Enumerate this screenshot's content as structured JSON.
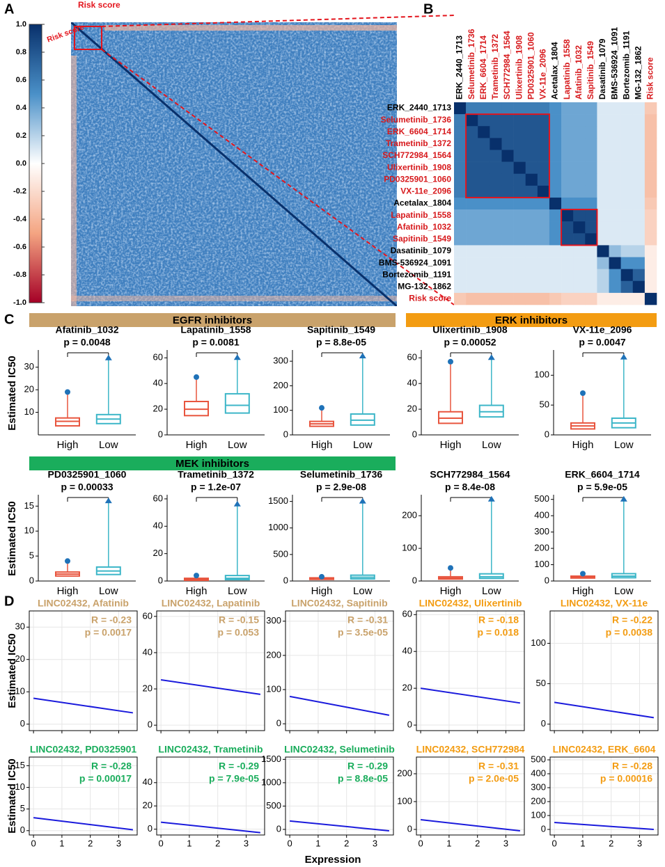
{
  "panel_labels": [
    "A",
    "B",
    "C",
    "D"
  ],
  "panel_a": {
    "annotations": [
      "Risk score",
      "Risk score"
    ],
    "colorbar_ticks": [
      {
        "value": 1,
        "label": "1.0"
      },
      {
        "value": 0.8,
        "label": "0.8"
      },
      {
        "value": 0.6,
        "label": "0.6"
      },
      {
        "value": 0.4,
        "label": "0.4"
      },
      {
        "value": 0.2,
        "label": "0.2"
      },
      {
        "value": 0,
        "label": "0.0"
      },
      {
        "value": -0.2,
        "label": "-0.2"
      },
      {
        "value": -0.4,
        "label": "-0.4"
      },
      {
        "value": -0.6,
        "label": "-0.6"
      },
      {
        "value": -0.8,
        "label": "-0.8"
      },
      {
        "value": -1,
        "label": "-1.0"
      }
    ]
  },
  "panel_b": {
    "labels": [
      "ERK_2440_1713",
      "Selumetinib_1736",
      "ERK_6604_1714",
      "Trametinib_1372",
      "SCH772984_1564",
      "Ulixertinib_1908",
      "PD0325901_1060",
      "VX-11e_2096",
      "Acetalax_1804",
      "Lapatinib_1558",
      "Afatinib_1032",
      "Sapitinib_1549",
      "Dasatinib_1079",
      "BMS-536924_1091",
      "Bortezomib_1191",
      "MG-132_1862",
      "Risk score"
    ],
    "label_colors": [
      "#000000",
      "#d7191c",
      "#d7191c",
      "#d7191c",
      "#d7191c",
      "#d7191c",
      "#d7191c",
      "#d7191c",
      "#000000",
      "#d7191c",
      "#d7191c",
      "#d7191c",
      "#000000",
      "#000000",
      "#000000",
      "#000000",
      "#d7191c"
    ],
    "boxes": [
      [
        1,
        7
      ],
      [
        9,
        11
      ]
    ],
    "matrix": [
      [
        1,
        0.6,
        0.6,
        0.6,
        0.6,
        0.6,
        0.6,
        0.6,
        0.5,
        0.4,
        0.4,
        0.4,
        0.1,
        0.1,
        0.1,
        0.1,
        -0.3
      ],
      [
        0.6,
        1,
        0.8,
        0.8,
        0.8,
        0.8,
        0.8,
        0.8,
        0.5,
        0.4,
        0.4,
        0.4,
        0.1,
        0.1,
        0.1,
        0.1,
        -0.35
      ],
      [
        0.6,
        0.8,
        1,
        0.8,
        0.8,
        0.8,
        0.8,
        0.8,
        0.5,
        0.4,
        0.4,
        0.4,
        0.1,
        0.1,
        0.1,
        0.1,
        -0.35
      ],
      [
        0.6,
        0.8,
        0.8,
        1,
        0.8,
        0.8,
        0.8,
        0.8,
        0.5,
        0.4,
        0.4,
        0.4,
        0.1,
        0.1,
        0.1,
        0.1,
        -0.35
      ],
      [
        0.6,
        0.8,
        0.8,
        0.8,
        1,
        0.8,
        0.8,
        0.8,
        0.5,
        0.4,
        0.4,
        0.4,
        0.1,
        0.1,
        0.1,
        0.1,
        -0.35
      ],
      [
        0.6,
        0.8,
        0.8,
        0.8,
        0.8,
        1,
        0.8,
        0.8,
        0.5,
        0.4,
        0.4,
        0.4,
        0.1,
        0.1,
        0.1,
        0.1,
        -0.35
      ],
      [
        0.6,
        0.8,
        0.8,
        0.8,
        0.8,
        0.8,
        1,
        0.8,
        0.5,
        0.4,
        0.4,
        0.4,
        0.1,
        0.1,
        0.1,
        0.1,
        -0.35
      ],
      [
        0.6,
        0.8,
        0.8,
        0.8,
        0.8,
        0.8,
        0.8,
        1,
        0.5,
        0.4,
        0.4,
        0.4,
        0.1,
        0.1,
        0.1,
        0.1,
        -0.35
      ],
      [
        0.5,
        0.5,
        0.5,
        0.5,
        0.5,
        0.5,
        0.5,
        0.5,
        1,
        0.5,
        0.5,
        0.5,
        0.1,
        0.1,
        0.1,
        0.1,
        -0.3
      ],
      [
        0.4,
        0.4,
        0.4,
        0.4,
        0.4,
        0.4,
        0.4,
        0.4,
        0.5,
        1,
        0.85,
        0.85,
        0.1,
        0.1,
        0.1,
        0.1,
        -0.25
      ],
      [
        0.4,
        0.4,
        0.4,
        0.4,
        0.4,
        0.4,
        0.4,
        0.4,
        0.5,
        0.85,
        1,
        0.85,
        0.1,
        0.1,
        0.1,
        0.1,
        -0.25
      ],
      [
        0.4,
        0.4,
        0.4,
        0.4,
        0.4,
        0.4,
        0.4,
        0.4,
        0.5,
        0.85,
        0.85,
        1,
        0.1,
        0.1,
        0.1,
        0.1,
        -0.25
      ],
      [
        0.1,
        0.1,
        0.1,
        0.1,
        0.1,
        0.1,
        0.1,
        0.1,
        0.1,
        0.1,
        0.1,
        0.1,
        1,
        0.3,
        0.2,
        0.2,
        -0.1
      ],
      [
        0.1,
        0.1,
        0.1,
        0.1,
        0.1,
        0.1,
        0.1,
        0.1,
        0.1,
        0.1,
        0.1,
        0.1,
        0.3,
        1,
        0.5,
        0.5,
        -0.1
      ],
      [
        0.1,
        0.1,
        0.1,
        0.1,
        0.1,
        0.1,
        0.1,
        0.1,
        0.1,
        0.1,
        0.1,
        0.1,
        0.2,
        0.5,
        1,
        0.75,
        -0.1
      ],
      [
        0.1,
        0.1,
        0.1,
        0.1,
        0.1,
        0.1,
        0.1,
        0.1,
        0.1,
        0.1,
        0.1,
        0.1,
        0.2,
        0.5,
        0.75,
        1,
        -0.1
      ],
      [
        -0.3,
        -0.35,
        -0.35,
        -0.35,
        -0.35,
        -0.35,
        -0.35,
        -0.35,
        -0.3,
        -0.25,
        -0.25,
        -0.25,
        -0.1,
        -0.1,
        -0.1,
        -0.1,
        1
      ]
    ]
  },
  "panel_c": {
    "ylabel": "Estimated IC50",
    "groups": [
      "High",
      "Low"
    ],
    "group_colors": [
      "#e8553e",
      "#3cb6c8"
    ],
    "point_color": "#1f72b8",
    "headers": [
      {
        "text": "EGFR inhibitors",
        "color": "#c9a26b"
      },
      {
        "text": "ERK inhibitors",
        "color": "#f39c12"
      },
      {
        "text": "MEK inhibitors",
        "color": "#1aad5c"
      }
    ],
    "plots": [
      {
        "title": "Afatinib_1032",
        "p": "p = 0.0048",
        "ylim": [
          0,
          37
        ],
        "yticks": [
          10,
          20,
          30
        ],
        "q": [
          [
            4,
            6,
            7.5
          ],
          [
            5,
            7,
            9
          ]
        ],
        "max": [
          19,
          34
        ]
      },
      {
        "title": "Lapatinib_1558",
        "p": "p = 0.0081",
        "ylim": [
          0,
          65
        ],
        "yticks": [
          0,
          20,
          40,
          60
        ],
        "q": [
          [
            15,
            20,
            26
          ],
          [
            17,
            23,
            32
          ]
        ],
        "max": [
          45,
          60
        ]
      },
      {
        "title": "Sapitinib_1549",
        "p": "p = 8.8e-05",
        "ylim": [
          0,
          340
        ],
        "yticks": [
          0,
          100,
          200,
          300
        ],
        "q": [
          [
            35,
            45,
            55
          ],
          [
            40,
            60,
            85
          ]
        ],
        "max": [
          110,
          320
        ]
      },
      {
        "title": "Ulixertinib_1908",
        "p": "p = 0.00052",
        "ylim": [
          0,
          65
        ],
        "yticks": [
          0,
          20,
          40,
          60
        ],
        "q": [
          [
            9,
            13,
            18
          ],
          [
            14,
            18,
            23
          ]
        ],
        "max": [
          57,
          60
        ]
      },
      {
        "title": "VX-11e_2096",
        "p": "p = 0.0047",
        "ylim": [
          0,
          140
        ],
        "yticks": [
          0,
          50,
          100
        ],
        "q": [
          [
            10,
            15,
            20
          ],
          [
            12,
            20,
            28
          ]
        ],
        "max": [
          70,
          130
        ]
      },
      {
        "title": "PD0325901_1060",
        "p": "p = 0.00033",
        "ylim": [
          0,
          17
        ],
        "yticks": [
          0,
          5,
          10,
          15
        ],
        "q": [
          [
            1,
            1.4,
            1.8
          ],
          [
            1.3,
            2,
            2.8
          ]
        ],
        "max": [
          4,
          16
        ]
      },
      {
        "title": "Trametinib_1372",
        "p": "p = 1.2e-07",
        "ylim": [
          0,
          62
        ],
        "yticks": [
          0,
          20,
          40,
          60
        ],
        "q": [
          [
            0.5,
            1,
            2
          ],
          [
            1,
            2,
            4
          ]
        ],
        "max": [
          4,
          56
        ]
      },
      {
        "title": "Selumetinib_1736",
        "p": "p = 2.9e-08",
        "ylim": [
          0,
          1600
        ],
        "yticks": [
          0,
          500,
          1000,
          1500
        ],
        "q": [
          [
            30,
            45,
            60
          ],
          [
            40,
            70,
            110
          ]
        ],
        "max": [
          80,
          1500
        ]
      },
      {
        "title": "SCH772984_1564",
        "p": "p = 8.4e-08",
        "ylim": [
          0,
          260
        ],
        "yticks": [
          0,
          100,
          200
        ],
        "q": [
          [
            6,
            9,
            13
          ],
          [
            8,
            13,
            22
          ]
        ],
        "max": [
          40,
          250
        ]
      },
      {
        "title": "ERK_6604_1714",
        "p": "p = 5.9e-05",
        "ylim": [
          0,
          520
        ],
        "yticks": [
          0,
          100,
          200,
          300,
          400,
          500
        ],
        "q": [
          [
            18,
            25,
            30
          ],
          [
            20,
            30,
            45
          ]
        ],
        "max": [
          45,
          500
        ]
      }
    ]
  },
  "panel_d": {
    "ylabel": "Estimated IC50",
    "xlabel": "Expression",
    "xlim": [
      -0.15,
      3.65
    ],
    "xticks": [
      0,
      1,
      2,
      3
    ],
    "fit_x": [
      0,
      3.5
    ],
    "line_color": "#1a1adc",
    "plots": [
      {
        "title": "LINC02432, Afatinib",
        "color": "#c9a26b",
        "r": "R = -0.23",
        "p": "p = 0.0017",
        "ylim": [
          -2,
          35
        ],
        "yticks": [
          0,
          10,
          20,
          30
        ],
        "fit": [
          8,
          3.5
        ]
      },
      {
        "title": "LINC02432, Lapatinib",
        "color": "#c9a26b",
        "r": "R = -0.15",
        "p": "p = 0.053",
        "ylim": [
          -3,
          63
        ],
        "yticks": [
          0,
          20,
          40,
          60
        ],
        "fit": [
          25,
          17
        ]
      },
      {
        "title": "LINC02432, Sapitinib",
        "color": "#c9a26b",
        "r": "R = -0.31",
        "p": "p = 3.5e-05",
        "ylim": [
          -20,
          330
        ],
        "yticks": [
          0,
          100,
          200,
          300
        ],
        "fit": [
          80,
          25
        ]
      },
      {
        "title": "LINC02432, Ulixertinib",
        "color": "#f39c12",
        "r": "R = -0.18",
        "p": "p = 0.018",
        "ylim": [
          -3,
          62
        ],
        "yticks": [
          0,
          20,
          40,
          60
        ],
        "fit": [
          20,
          12
        ]
      },
      {
        "title": "LINC02432, VX-11e",
        "color": "#f39c12",
        "r": "R = -0.22",
        "p": "p = 0.0038",
        "ylim": [
          -8,
          140
        ],
        "yticks": [
          0,
          50,
          100
        ],
        "fit": [
          27,
          8
        ]
      },
      {
        "title": "LINC02432, PD0325901",
        "color": "#1aad5c",
        "r": "R = -0.28",
        "p": "p = 0.00017",
        "ylim": [
          -1,
          17
        ],
        "yticks": [
          0,
          5,
          10,
          15
        ],
        "fit": [
          3,
          0.2
        ]
      },
      {
        "title": "LINC02432, Trametinib",
        "color": "#1aad5c",
        "r": "R = -0.29",
        "p": "p = 7.9e-05",
        "ylim": [
          -5,
          62
        ],
        "yticks": [
          0,
          20,
          40
        ],
        "fit": [
          6,
          -3
        ]
      },
      {
        "title": "LINC02432, Selumetinib",
        "color": "#1aad5c",
        "r": "R = -0.29",
        "p": "p = 8.8e-05",
        "ylim": [
          -120,
          1550
        ],
        "yticks": [
          0,
          500,
          1000,
          1500
        ],
        "fit": [
          180,
          -30
        ]
      },
      {
        "title": "LINC02432, SCH772984",
        "color": "#f39c12",
        "r": "R = -0.31",
        "p": "p = 2.0e-05",
        "ylim": [
          -20,
          260
        ],
        "yticks": [
          0,
          100,
          200
        ],
        "fit": [
          35,
          -5
        ]
      },
      {
        "title": "LINC02432, ERK_6604",
        "color": "#f39c12",
        "r": "R = -0.28",
        "p": "p = 0.00016",
        "ylim": [
          -40,
          520
        ],
        "yticks": [
          0,
          100,
          200,
          300,
          400,
          500
        ],
        "fit": [
          50,
          0
        ]
      }
    ]
  }
}
